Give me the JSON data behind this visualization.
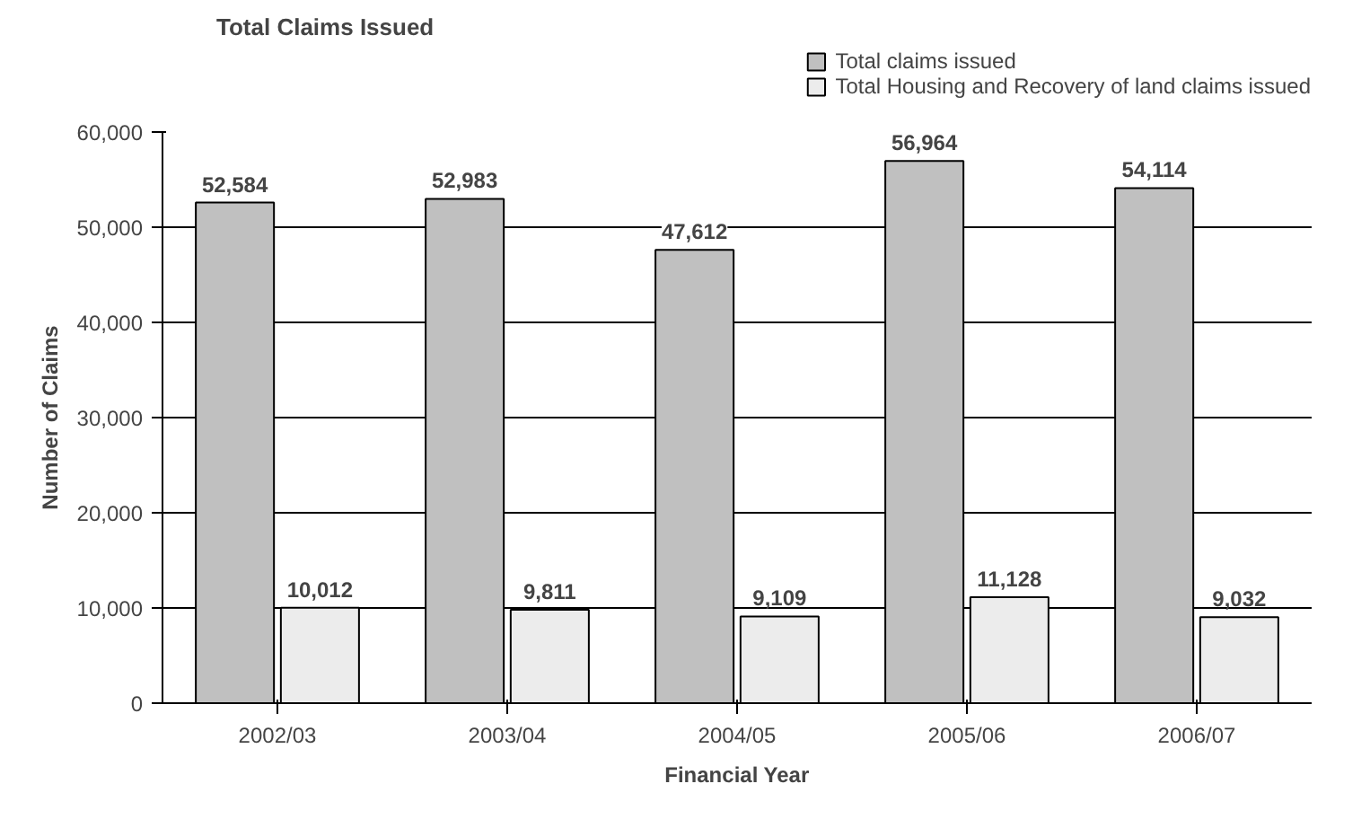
{
  "chart_data": {
    "type": "bar",
    "title": "Total Claims Issued",
    "xlabel": "Financial Year",
    "ylabel": "Number of Claims",
    "categories": [
      "2002/03",
      "2003/04",
      "2004/05",
      "2005/06",
      "2006/07"
    ],
    "series": [
      {
        "name": "Total claims issued",
        "color": "#c0c0c0",
        "values": [
          52584,
          52983,
          47612,
          56964,
          54114
        ],
        "value_labels": [
          "52,584",
          "52,983",
          "47,612",
          "56,964",
          "54,114"
        ]
      },
      {
        "name": "Total Housing and Recovery of land claims issued",
        "color": "#ececec",
        "values": [
          10012,
          9811,
          9109,
          11128,
          9032
        ],
        "value_labels": [
          "10,012",
          "9,811",
          "9,109",
          "11,128",
          "9,032"
        ]
      }
    ],
    "ylim": [
      0,
      60000
    ],
    "yticks": [
      {
        "value": 0,
        "label": "0"
      },
      {
        "value": 10000,
        "label": "10,000"
      },
      {
        "value": 20000,
        "label": "20,000"
      },
      {
        "value": 30000,
        "label": "30,000"
      },
      {
        "value": 40000,
        "label": "40,000"
      },
      {
        "value": 50000,
        "label": "50,000"
      },
      {
        "value": 60000,
        "label": "60,000"
      }
    ],
    "grid": "y",
    "legend": "top right"
  }
}
